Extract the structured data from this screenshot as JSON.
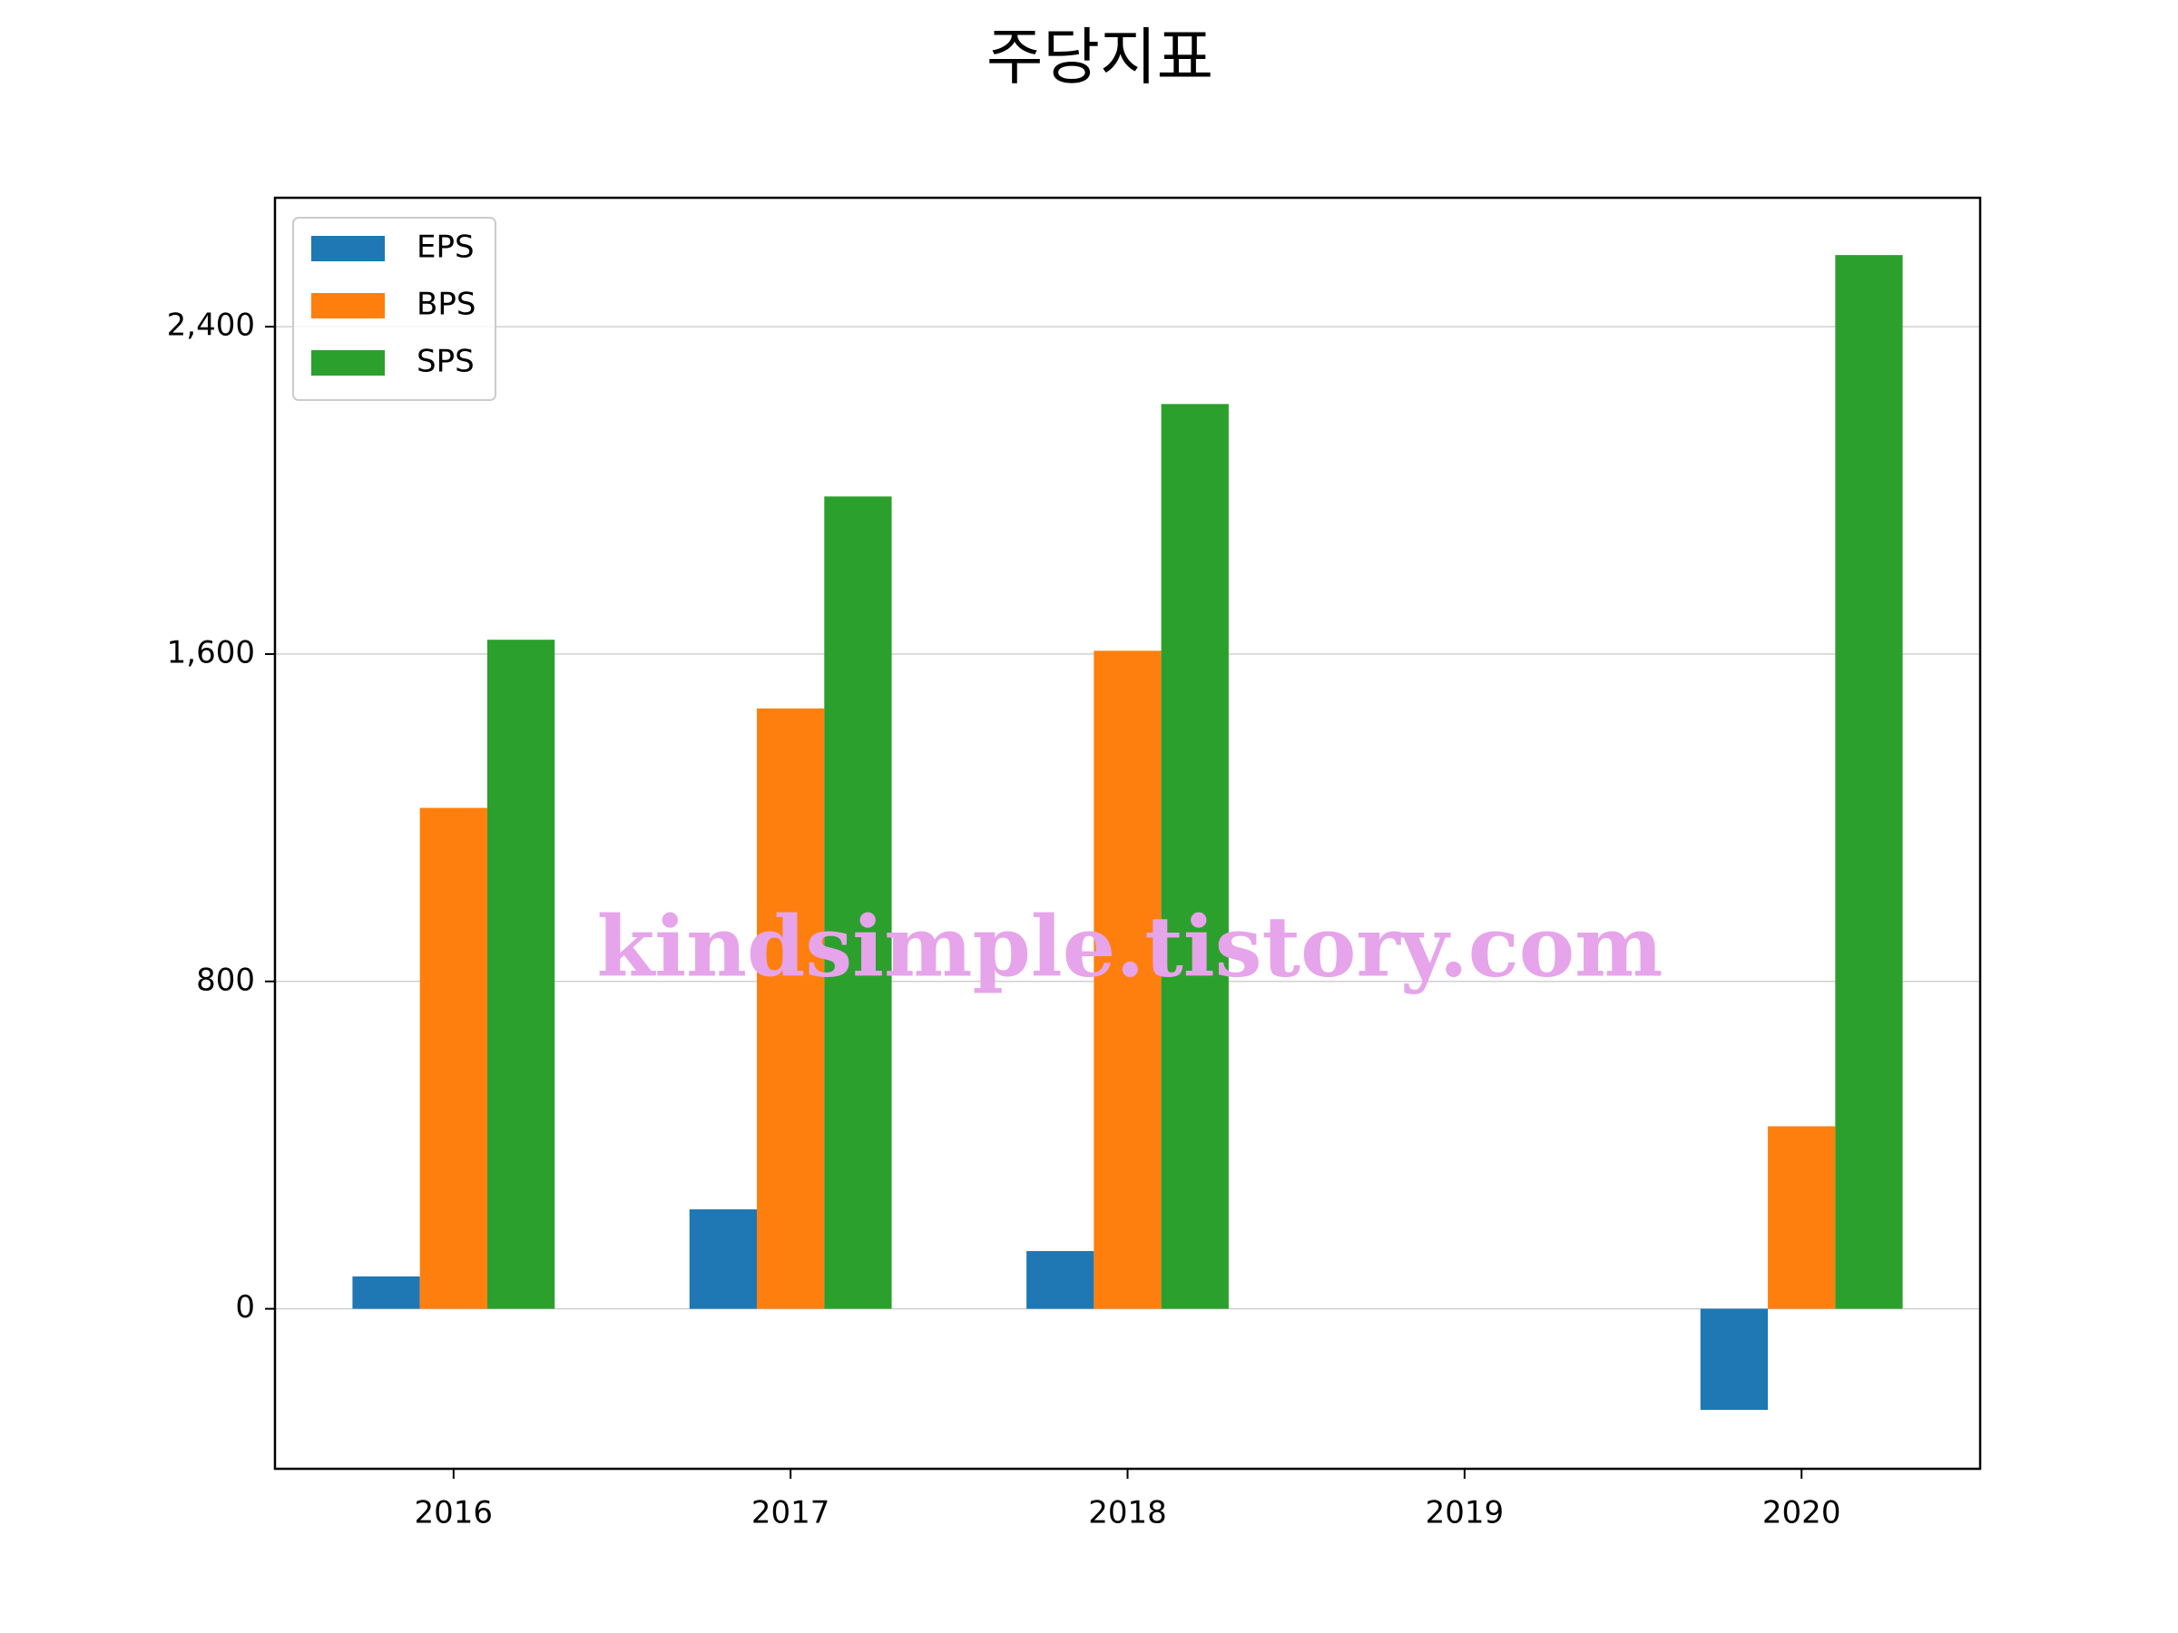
{
  "chart_data": {
    "type": "bar",
    "title": "주당지표",
    "watermark": "kindsimple.tistory.com",
    "categories": [
      "2016",
      "2017",
      "2018",
      "2019",
      "2020"
    ],
    "series": [
      {
        "name": "EPS",
        "color": "#1f77b4",
        "values": [
          79,
          243,
          141,
          null,
          -247
        ]
      },
      {
        "name": "BPS",
        "color": "#ff7f0e",
        "values": [
          1224,
          1467,
          1608,
          null,
          446
        ]
      },
      {
        "name": "SPS",
        "color": "#2ca02c",
        "values": [
          1635,
          1985,
          2211,
          null,
          2575
        ]
      }
    ],
    "ylim": [
      -391,
      2715
    ],
    "yticks": [
      0,
      800,
      {
        "value": 1600,
        "label": "1,600"
      },
      {
        "value": 2400,
        "label": "2,400"
      }
    ],
    "grid": true,
    "legend": "upper left"
  }
}
